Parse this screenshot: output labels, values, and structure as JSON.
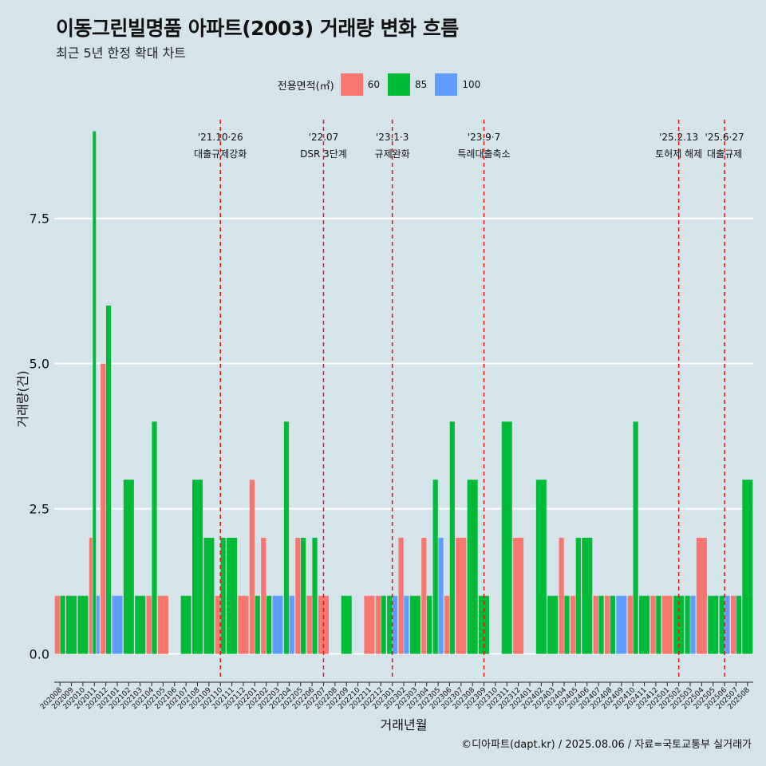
{
  "header": {
    "title": "이동그린빌명품 아파트(2003) 거래량 변화 흐름",
    "subtitle": "최근 5년 한정 확대 차트"
  },
  "legend": {
    "title": "전용면적(㎡)",
    "items": [
      {
        "label": "60",
        "color": "#f8766d"
      },
      {
        "label": "85",
        "color": "#00ba38"
      },
      {
        "label": "100",
        "color": "#619cff"
      }
    ]
  },
  "caption": "©디아파트(dapt.kr) / 2025.08.06 / 자료=국토교통부 실거래가",
  "chart_data": {
    "type": "bar",
    "title": "이동그린빌명품 아파트(2003) 거래량 변화 흐름",
    "xlabel": "거래년월",
    "ylabel": "거래량(건)",
    "ylim": [
      -0.35,
      9.2
    ],
    "yticks": [
      0.0,
      2.5,
      5.0,
      7.5
    ],
    "ytick_labels": [
      "0.0",
      "2.5",
      "5.0",
      "7.5"
    ],
    "grid": true,
    "legend_position": "top",
    "categories": [
      "202008",
      "202009",
      "202010",
      "202011",
      "202012",
      "202101",
      "202102",
      "202103",
      "202104",
      "202105",
      "202106",
      "202107",
      "202108",
      "202109",
      "202110",
      "202111",
      "202112",
      "202201",
      "202202",
      "202203",
      "202204",
      "202205",
      "202206",
      "202207",
      "202208",
      "202209",
      "202210",
      "202211",
      "202212",
      "202301",
      "202302",
      "202303",
      "202304",
      "202305",
      "202306",
      "202307",
      "202308",
      "202309",
      "202310",
      "202311",
      "202312",
      "202401",
      "202402",
      "202403",
      "202404",
      "202405",
      "202406",
      "202407",
      "202408",
      "202409",
      "202410",
      "202411",
      "202412",
      "202501",
      "202502",
      "202503",
      "202504",
      "202505",
      "202506",
      "202507",
      "202508"
    ],
    "series": [
      {
        "name": "60",
        "color": "#f8766d",
        "values": [
          1,
          0,
          0,
          2,
          5,
          0,
          0,
          0,
          1,
          1,
          0,
          0,
          0,
          0,
          1,
          0,
          1,
          3,
          2,
          0,
          0,
          2,
          1,
          1,
          0,
          0,
          0,
          1,
          1,
          0,
          2,
          0,
          2,
          0,
          1,
          2,
          0,
          0,
          0,
          0,
          2,
          0,
          0,
          0,
          2,
          1,
          0,
          1,
          1,
          0,
          1,
          0,
          1,
          1,
          0,
          0,
          2,
          0,
          0,
          1,
          0
        ]
      },
      {
        "name": "85",
        "color": "#00ba38",
        "values": [
          1,
          1,
          1,
          9,
          6,
          0,
          3,
          1,
          4,
          0,
          0,
          1,
          3,
          2,
          2,
          2,
          0,
          1,
          1,
          0,
          4,
          2,
          2,
          0,
          0,
          1,
          0,
          0,
          1,
          1,
          0,
          1,
          1,
          3,
          4,
          0,
          3,
          1,
          0,
          4,
          0,
          0,
          3,
          1,
          1,
          2,
          2,
          1,
          1,
          0,
          4,
          1,
          1,
          0,
          1,
          1,
          0,
          1,
          1,
          1,
          3
        ]
      },
      {
        "name": "100",
        "color": "#619cff",
        "values": [
          0,
          0,
          0,
          1,
          0,
          1,
          0,
          0,
          0,
          0,
          0,
          0,
          0,
          0,
          0,
          0,
          0,
          0,
          0,
          1,
          1,
          0,
          0,
          0,
          0,
          0,
          0,
          0,
          0,
          1,
          1,
          0,
          0,
          2,
          0,
          0,
          0,
          0,
          0,
          0,
          0,
          0,
          0,
          0,
          0,
          0,
          0,
          0,
          0,
          1,
          0,
          0,
          0,
          0,
          0,
          1,
          0,
          0,
          1,
          0,
          0
        ]
      }
    ],
    "annotations": [
      {
        "at": "202110",
        "date": "'21.10·26",
        "label": "대출규제강화"
      },
      {
        "at": "202207",
        "date": "'22.07",
        "label": "DSR 3단계"
      },
      {
        "at": "202301",
        "date": "'23.1·3",
        "label": "규제완화"
      },
      {
        "at": "202309",
        "date": "'23.9·7",
        "label": "특례대출축소"
      },
      {
        "at": "202502",
        "date": "'25.2.13",
        "label": "토허제 해제"
      },
      {
        "at": "202506",
        "date": "'25.6·27",
        "label": "대출규제"
      }
    ]
  }
}
